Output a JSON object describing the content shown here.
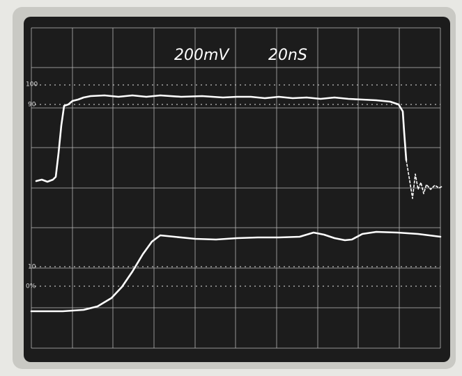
{
  "screen": {
    "volts_per_div": "200mV",
    "time_per_div": "20nS",
    "scale_labels": {
      "top": "100",
      "upper": "90",
      "lower": "10",
      "bottom": "0%"
    }
  }
}
